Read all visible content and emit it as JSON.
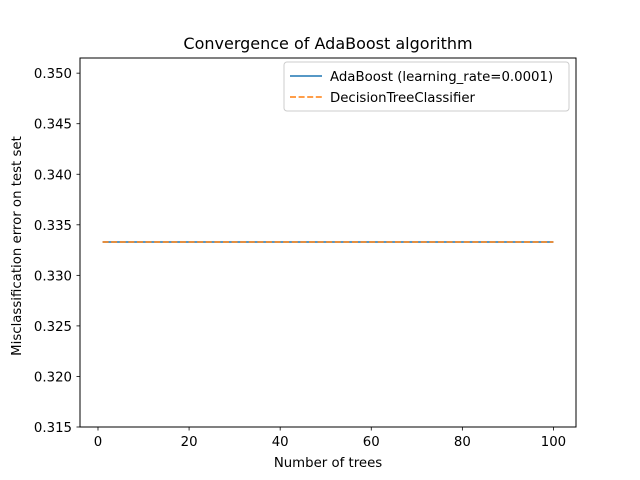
{
  "chart_data": {
    "type": "line",
    "title": "Convergence of AdaBoost algorithm",
    "xlabel": "Number of trees",
    "ylabel": "Misclassification error on test set",
    "xlim": [
      -3.95,
      104.95
    ],
    "ylim": [
      0.315,
      0.3515
    ],
    "xticks": [
      0,
      20,
      40,
      60,
      80,
      100
    ],
    "xtick_labels": [
      "0",
      "20",
      "40",
      "60",
      "80",
      "100"
    ],
    "yticks": [
      0.315,
      0.32,
      0.325,
      0.33,
      0.335,
      0.34,
      0.345,
      0.35
    ],
    "ytick_labels": [
      "0.315",
      "0.320",
      "0.325",
      "0.330",
      "0.335",
      "0.340",
      "0.345",
      "0.350"
    ],
    "grid": false,
    "legend_position": "top-right",
    "series": [
      {
        "name": "AdaBoost (learning_rate=0.0001)",
        "style": "solid",
        "color": "#1f77b4",
        "x": [
          1,
          100
        ],
        "y": [
          0.3333,
          0.3333
        ]
      },
      {
        "name": "DecisionTreeClassifier",
        "style": "dashed",
        "color": "#ff7f0e",
        "x": [
          1,
          100
        ],
        "y": [
          0.3333,
          0.3333
        ]
      }
    ]
  }
}
